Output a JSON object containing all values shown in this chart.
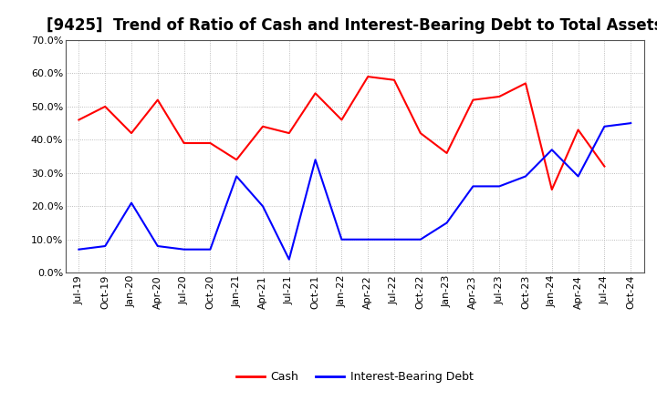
{
  "title": "[9425]  Trend of Ratio of Cash and Interest-Bearing Debt to Total Assets",
  "x_labels": [
    "Jul-19",
    "Oct-19",
    "Jan-20",
    "Apr-20",
    "Jul-20",
    "Oct-20",
    "Jan-21",
    "Apr-21",
    "Jul-21",
    "Oct-21",
    "Jan-22",
    "Apr-22",
    "Jul-22",
    "Oct-22",
    "Jan-23",
    "Apr-23",
    "Jul-23",
    "Oct-23",
    "Jan-24",
    "Apr-24",
    "Jul-24",
    "Oct-24"
  ],
  "cash": [
    0.46,
    0.5,
    0.42,
    0.52,
    0.39,
    0.39,
    0.34,
    0.44,
    0.42,
    0.54,
    0.46,
    0.59,
    0.58,
    0.42,
    0.36,
    0.52,
    0.53,
    0.57,
    0.25,
    0.43,
    0.32,
    null
  ],
  "debt": [
    0.07,
    0.08,
    0.21,
    0.08,
    0.07,
    0.07,
    0.29,
    0.2,
    0.04,
    0.34,
    0.1,
    0.1,
    0.1,
    0.1,
    0.15,
    0.26,
    0.26,
    0.29,
    0.37,
    0.29,
    0.44,
    0.45
  ],
  "cash_color": "#FF0000",
  "debt_color": "#0000FF",
  "ylim": [
    0.0,
    0.7
  ],
  "yticks": [
    0.0,
    0.1,
    0.2,
    0.3,
    0.4,
    0.5,
    0.6,
    0.7
  ],
  "background_color": "#FFFFFF",
  "grid_color": "#AAAAAA",
  "title_fontsize": 12,
  "tick_fontsize": 8,
  "legend_labels": [
    "Cash",
    "Interest-Bearing Debt"
  ]
}
